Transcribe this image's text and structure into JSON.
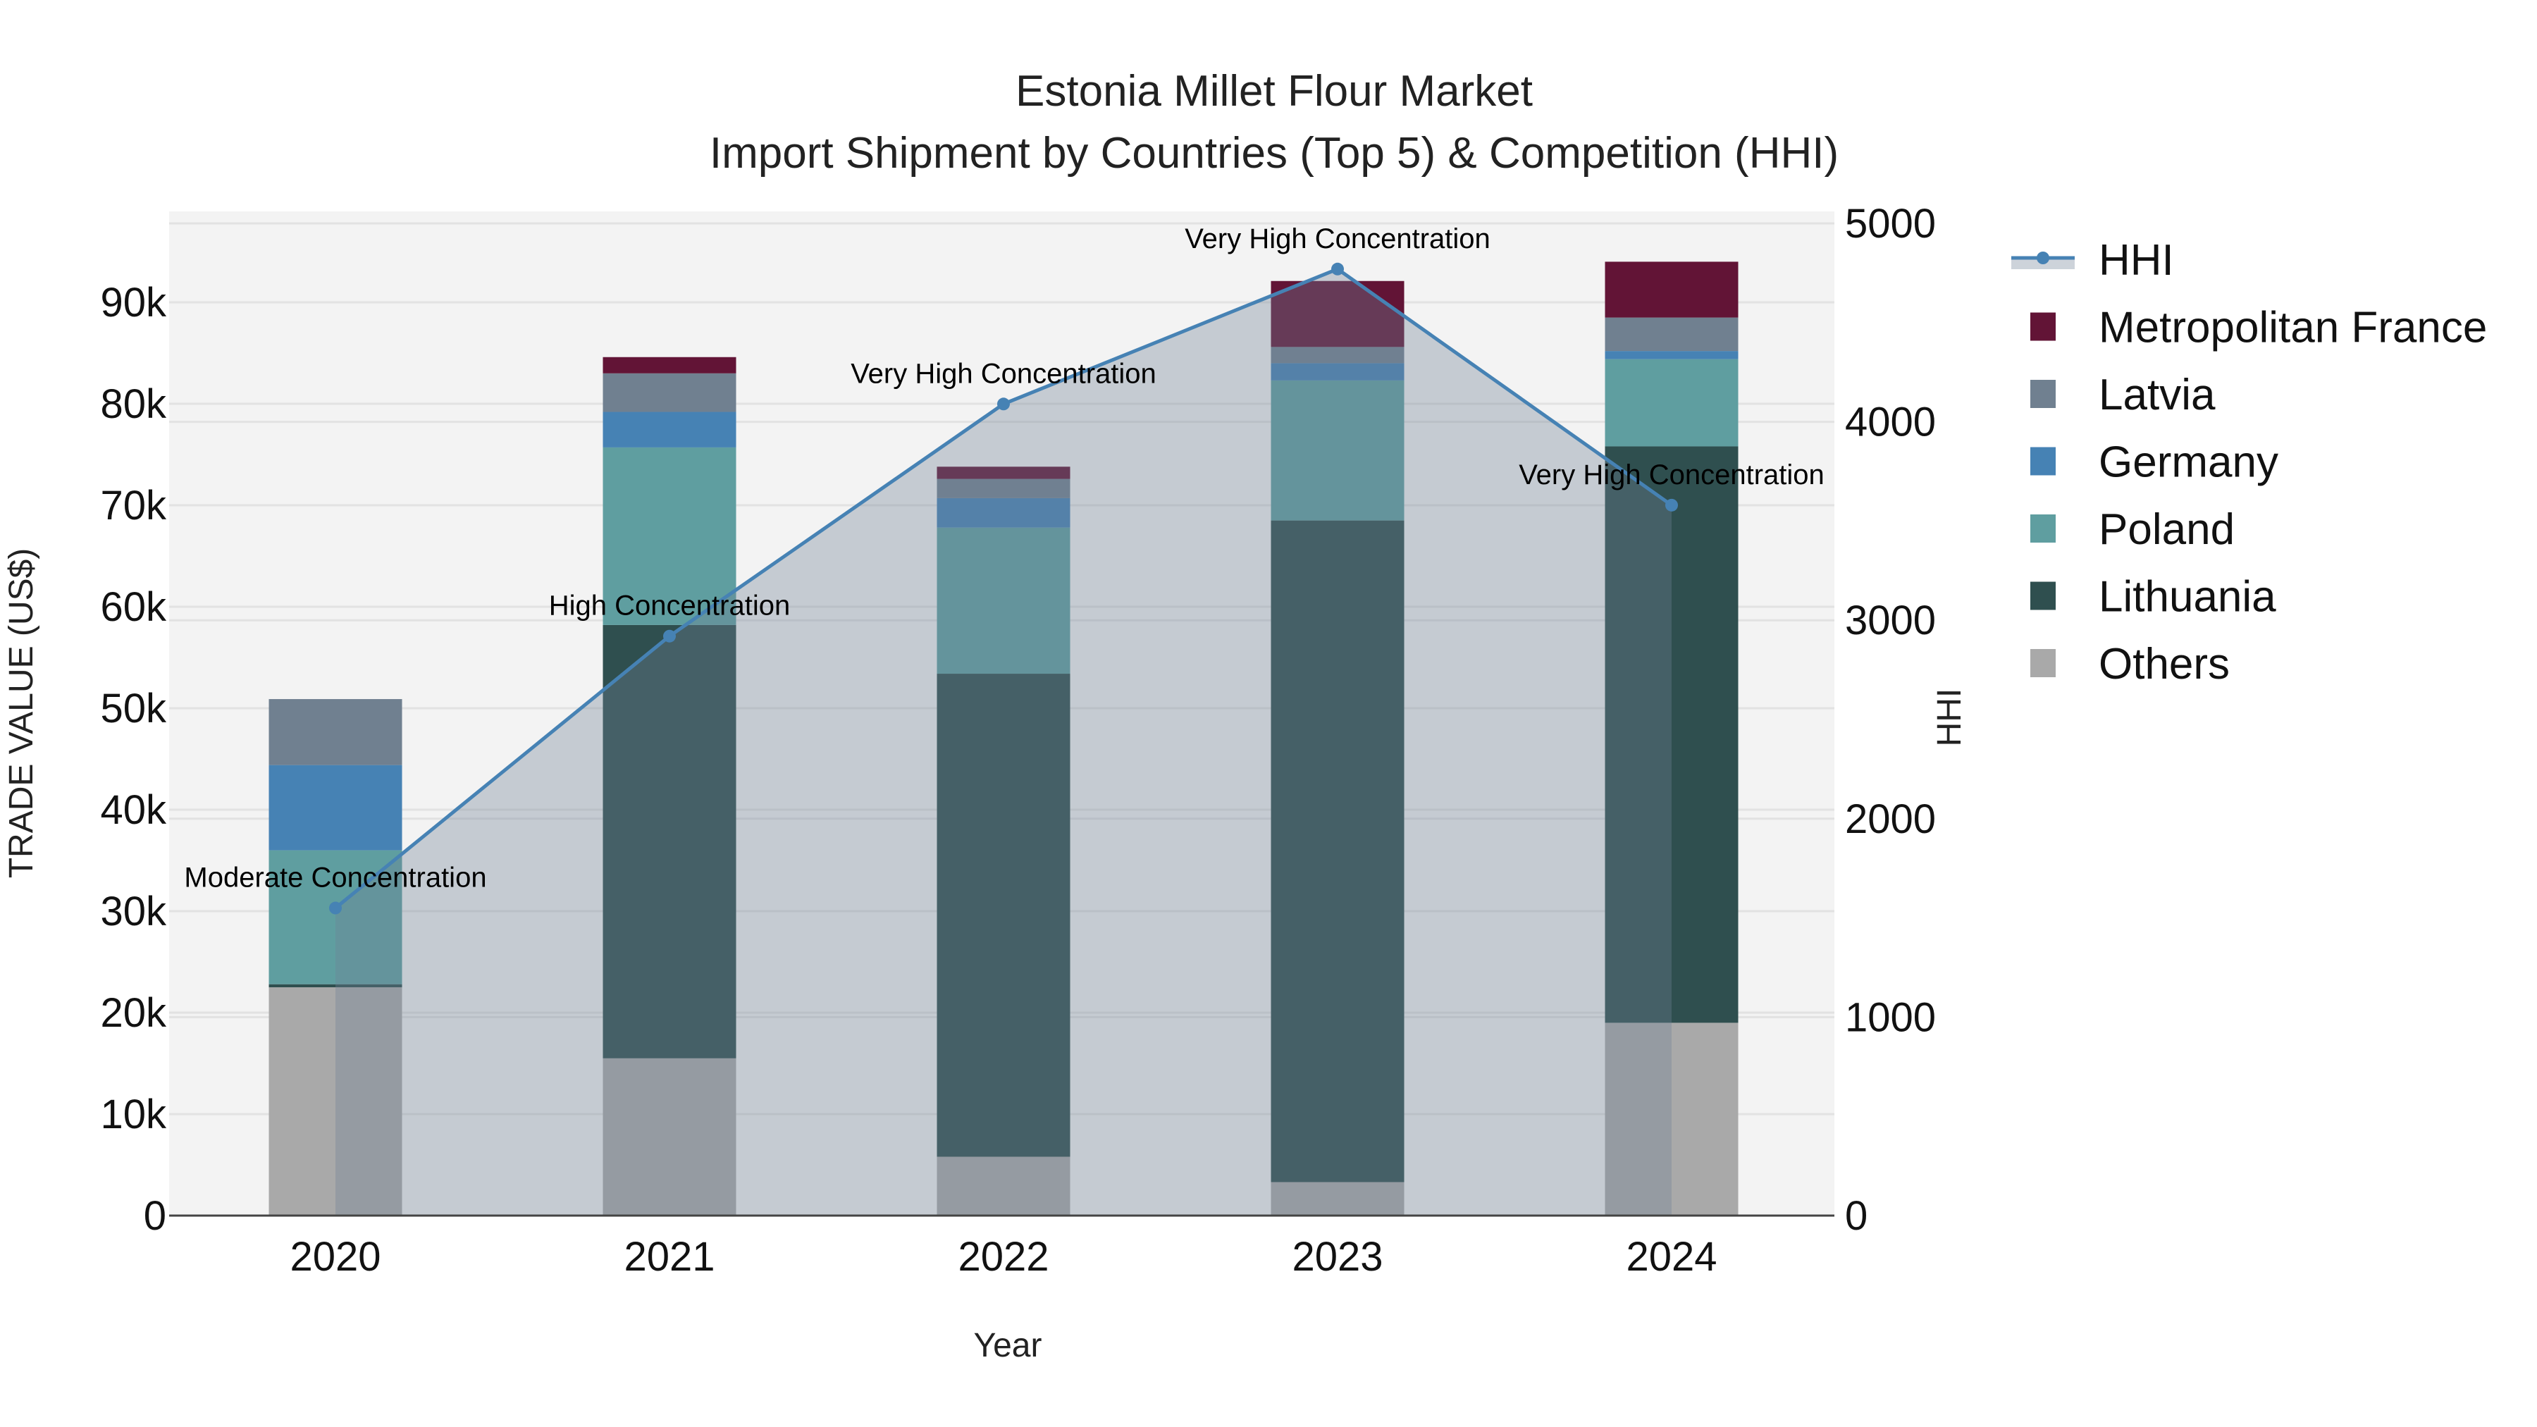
{
  "title": {
    "line1": "Estonia Millet Flour Market",
    "line2": "Import Shipment by Countries (Top 5) & Competition (HHI)"
  },
  "axes": {
    "x_title": "Year",
    "y_left_title": "TRADE VALUE (US$)",
    "y_right_title": "HHI",
    "y_left_ticks": [
      "0",
      "10k",
      "20k",
      "30k",
      "40k",
      "50k",
      "60k",
      "70k",
      "80k",
      "90k"
    ],
    "y_right_ticks": [
      "0",
      "1000",
      "2000",
      "3000",
      "4000",
      "5000"
    ],
    "x_ticks": [
      "2020",
      "2021",
      "2022",
      "2023",
      "2024"
    ]
  },
  "legend": {
    "items": [
      {
        "label": "HHI",
        "color": "#4682B4",
        "kind": "line"
      },
      {
        "label": "Metropolitan France",
        "color": "#621436",
        "kind": "box"
      },
      {
        "label": "Latvia",
        "color": "#708090",
        "kind": "box"
      },
      {
        "label": "Germany",
        "color": "#4682B4",
        "kind": "box"
      },
      {
        "label": "Poland",
        "color": "#5F9EA0",
        "kind": "box"
      },
      {
        "label": "Lithuania",
        "color": "#2F4F4F",
        "kind": "box"
      },
      {
        "label": "Others",
        "color": "#A9A9A9",
        "kind": "box"
      }
    ]
  },
  "annotations": [
    {
      "year": "2020",
      "text": "Moderate Concentration"
    },
    {
      "year": "2021",
      "text": "High Concentration"
    },
    {
      "year": "2022",
      "text": "Very High Concentration"
    },
    {
      "year": "2023",
      "text": "Very High Concentration"
    },
    {
      "year": "2024",
      "text": "Very High Concentration"
    }
  ],
  "colors": {
    "plot_bg": "#F3F3F3",
    "grid": "#E2E2E2",
    "hhi_line": "#4682B4",
    "hhi_fill": "rgba(112,128,150,0.35)"
  },
  "chart_data": {
    "type": "bar",
    "title": "Estonia Millet Flour Market — Import Shipment by Countries (Top 5) & Competition (HHI)",
    "xlabel": "Year",
    "ylabel": "TRADE VALUE (US$)",
    "y2label": "HHI",
    "categories": [
      "2020",
      "2021",
      "2022",
      "2023",
      "2024"
    ],
    "stacked": true,
    "ylim": [
      0,
      99000
    ],
    "y2lim": [
      0,
      5060
    ],
    "grid": true,
    "legend_position": "right",
    "series": [
      {
        "name": "Others",
        "color": "#A9A9A9",
        "values": [
          22500,
          15500,
          5800,
          3300,
          19000
        ]
      },
      {
        "name": "Lithuania",
        "color": "#2F4F4F",
        "values": [
          300,
          42700,
          47600,
          65200,
          56800
        ]
      },
      {
        "name": "Poland",
        "color": "#5F9EA0",
        "values": [
          13200,
          17500,
          14400,
          13800,
          8600
        ]
      },
      {
        "name": "Germany",
        "color": "#4682B4",
        "values": [
          8400,
          3500,
          2900,
          1700,
          800
        ]
      },
      {
        "name": "Latvia",
        "color": "#708090",
        "values": [
          6500,
          3800,
          1900,
          1600,
          3300
        ]
      },
      {
        "name": "Metropolitan France",
        "color": "#621436",
        "values": [
          0,
          1600,
          1200,
          6500,
          5500
        ]
      }
    ],
    "line_series": {
      "name": "HHI",
      "axis": "y2",
      "type": "line+area",
      "color": "#4682B4",
      "values": [
        1550,
        2920,
        4090,
        4770,
        3580
      ],
      "labels": [
        "Moderate Concentration",
        "High Concentration",
        "Very High Concentration",
        "Very High Concentration",
        "Very High Concentration"
      ]
    }
  }
}
